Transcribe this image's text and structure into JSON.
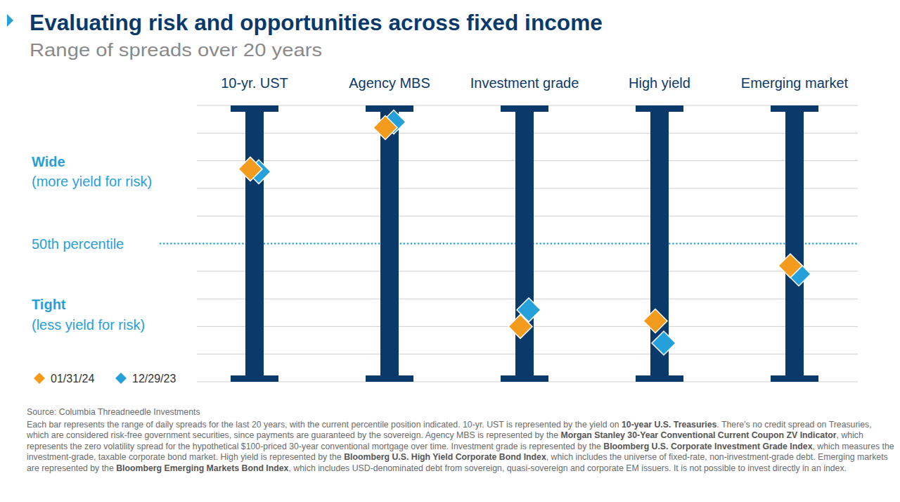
{
  "chart_data": {
    "type": "range_percentile",
    "title": "Evaluating risk and opportunities across fixed income",
    "subtitle": "Range of spreads over 20 years",
    "categories": [
      "10-yr. UST",
      "Agency MBS",
      "Investment grade",
      "High yield",
      "Emerging market"
    ],
    "series": [
      {
        "name": "01/31/24",
        "color": "#f39b1c",
        "marker": "diamond",
        "values": [
          77,
          92,
          20,
          22,
          42
        ]
      },
      {
        "name": "12/29/23",
        "color": "#26a0da",
        "marker": "diamond",
        "values": [
          76,
          94,
          26,
          14,
          39
        ]
      }
    ],
    "color": "#0b3a6a",
    "ylim": [
      0,
      100
    ],
    "yticks": [
      0,
      10,
      20,
      30,
      40,
      50,
      60,
      70,
      80,
      90,
      100
    ],
    "grid": true,
    "tick_labels": false,
    "legend": "bottom-left",
    "median_line": {
      "value": 50,
      "label": "50th percentile"
    },
    "annotations": [
      "Wide",
      "(more yield for risk)",
      "Tight",
      "(less yield for risk)"
    ],
    "source": "Source: Columbia Threadneedle Investments",
    "note": [
      "Each bar represents the range of daily spreads for the last 20 years, with the current percentile position indicated. 10-yr. UST is represented by the yield on ",
      "10-year U.S. Treasuries",
      ". There’s no credit spread on Treasuries, which are considered risk-free government securities, since payments are guaranteed by the sovereign. Agency MBS is represented by the ",
      "Morgan Stanley 30-Year Conventional Current Coupon ZV Indicator",
      ", which represents the zero volatility spread for the hypothetical $100-priced 30-year conventional mortgage over time. Investment grade is represented by the ",
      "Bloomberg U.S. Corporate Investment Grade Index",
      ", which measures the investment-grade, taxable corporate bond market. High yield is represented by the ",
      "Bloomberg U.S. High Yield Corporate Bond Index",
      ", which includes the universe of fixed-rate, non-investment-grade debt. Emerging markets are represented by the ",
      "Bloomberg Emerging Markets Bond Index",
      ", which includes USD-denominated debt from sovereign, quasi-sovereign and corporate EM issuers. It is not possible to invest directly in an index."
    ]
  }
}
